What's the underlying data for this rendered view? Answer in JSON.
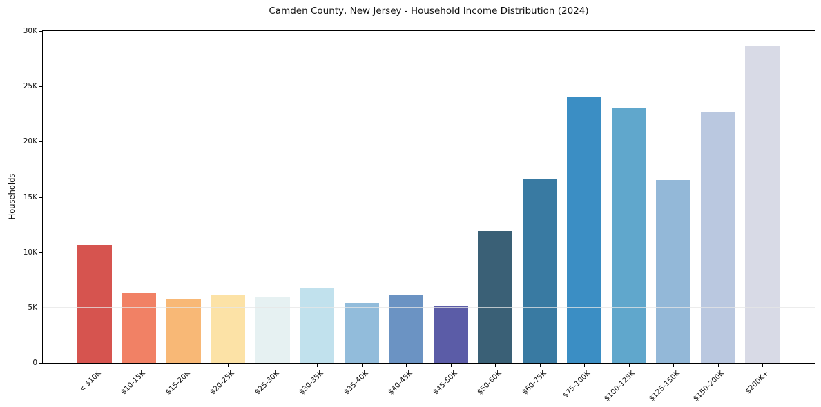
{
  "chart_data": {
    "type": "bar",
    "title": "Camden County, New Jersey - Household Income Distribution (2024)",
    "xlabel": "",
    "ylabel": "Households",
    "categories": [
      "< $10K",
      "$10-15K",
      "$15-20K",
      "$20-25K",
      "$25-30K",
      "$30-35K",
      "$35-40K",
      "$40-45K",
      "$45-50K",
      "$50-60K",
      "$60-75K",
      "$75-100K",
      "$100-125K",
      "$125-150K",
      "$150-200K",
      "$200K+"
    ],
    "values": [
      10650,
      6300,
      5750,
      6200,
      6000,
      6750,
      5400,
      6150,
      5200,
      11900,
      16600,
      24000,
      23000,
      16500,
      22700,
      28600
    ],
    "bar_colors": [
      "#d6544f",
      "#f18165",
      "#f8b876",
      "#fce2a6",
      "#e6f1f2",
      "#c1e1ed",
      "#92bcdb",
      "#6b93c3",
      "#5b5ca7",
      "#3a6076",
      "#397aa2",
      "#3b8ec4",
      "#60a7cc",
      "#93b8d8",
      "#bac8e0",
      "#d8dae6"
    ],
    "ylim": [
      0,
      30000
    ],
    "yticks": [
      {
        "value": 0,
        "label": "0"
      },
      {
        "value": 5000,
        "label": "5K"
      },
      {
        "value": 10000,
        "label": "10K"
      },
      {
        "value": 15000,
        "label": "15K"
      },
      {
        "value": 20000,
        "label": "20K"
      },
      {
        "value": 25000,
        "label": "25K"
      },
      {
        "value": 30000,
        "label": "30K"
      }
    ],
    "grid": "horizontal",
    "legend": "none",
    "style": {
      "grid_color": "#e6e6e6",
      "spine_color": "#000000",
      "text_color": "#111111",
      "background": "#ffffff"
    }
  }
}
